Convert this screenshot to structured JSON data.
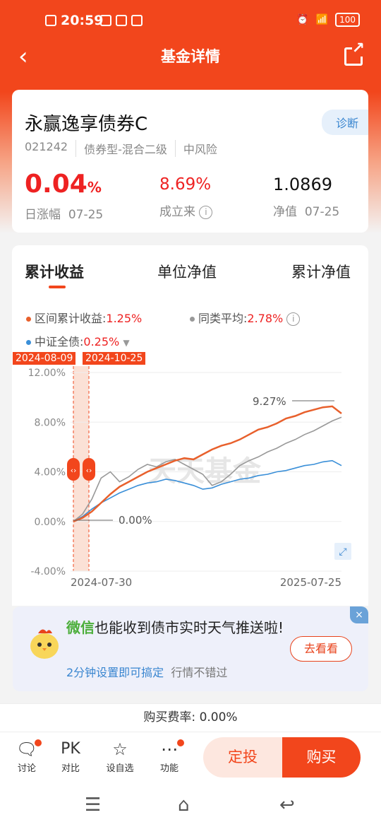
{
  "status_bar": {
    "time": "20:59",
    "battery": "100"
  },
  "nav": {
    "title": "基金详情"
  },
  "fund": {
    "name": "永赢逸享债券C",
    "diagnose_label": "诊断",
    "code": "021242",
    "type": "债券型-混合二级",
    "risk": "中风险",
    "daily_change": "0.04",
    "daily_change_unit": "%",
    "daily_label": "日涨幅",
    "daily_date": "07-25",
    "since_inception": "8.69%",
    "since_inception_label": "成立来",
    "nav_value": "1.0869",
    "nav_label": "净值",
    "nav_date": "07-25"
  },
  "chart_tabs": [
    "累计收益",
    "单位净值",
    "累计净值"
  ],
  "legend": {
    "fund_label": "区间累计收益:",
    "fund_value": "1.25%",
    "peer_label": "同类平均:",
    "peer_value": "2.78%",
    "index_label": "中证全债:",
    "index_value": "0.25%"
  },
  "range_badges": [
    "2024-08-09",
    "2024-10-25"
  ],
  "watermark": "天天基金",
  "chart_data": {
    "type": "line",
    "x_start": "2024-07-30",
    "x_end": "2025-07-25",
    "ylim": [
      -4,
      12
    ],
    "yticks": [
      "12.00%",
      "8.00%",
      "4.00%",
      "0.00%",
      "-4.00%"
    ],
    "xtick_labels": [
      "2024-07-30",
      "2025-07-25"
    ],
    "annotations": [
      "9.27%",
      "0.00%"
    ],
    "series": [
      {
        "color": "#e8602c",
        "values": [
          0,
          0.3,
          0.8,
          1.5,
          2.2,
          2.8,
          3.2,
          3.6,
          4.0,
          4.3,
          4.6,
          4.9,
          5.1,
          5.0,
          5.4,
          5.8,
          6.1,
          6.3,
          6.6,
          7.0,
          7.4,
          7.6,
          7.9,
          8.3,
          8.5,
          8.8,
          9.0,
          9.2,
          9.27,
          8.7
        ]
      },
      {
        "color": "#999999",
        "values": [
          0,
          0.6,
          1.8,
          3.5,
          4.0,
          3.2,
          3.6,
          4.2,
          4.6,
          4.4,
          4.8,
          5.0,
          4.6,
          4.2,
          3.8,
          2.9,
          3.2,
          3.8,
          4.5,
          4.9,
          5.2,
          5.6,
          5.9,
          6.3,
          6.6,
          7.0,
          7.3,
          7.7,
          8.1,
          8.4
        ]
      },
      {
        "color": "#3a8fd8",
        "values": [
          0,
          0.4,
          1.0,
          1.5,
          1.9,
          2.3,
          2.6,
          2.9,
          3.1,
          3.2,
          3.4,
          3.3,
          3.1,
          2.9,
          2.6,
          2.7,
          3.0,
          3.2,
          3.4,
          3.5,
          3.7,
          3.8,
          4.0,
          4.1,
          4.3,
          4.5,
          4.6,
          4.8,
          4.9,
          4.5
        ]
      }
    ]
  },
  "promo": {
    "brand": "微信",
    "text": "也能收到债市实时天气推送啦!",
    "sub_link": "2分钟设置即可搞定",
    "sub_text": "行情不错过",
    "button": "去看看",
    "close": "×"
  },
  "fee": {
    "label": "购买费率:",
    "value": "0.00%"
  },
  "bottom": {
    "discuss": "讨论",
    "pk_icon": "PK",
    "compare": "对比",
    "watch": "设自选",
    "more": "功能",
    "dingtou": "定投",
    "buy": "购买"
  }
}
